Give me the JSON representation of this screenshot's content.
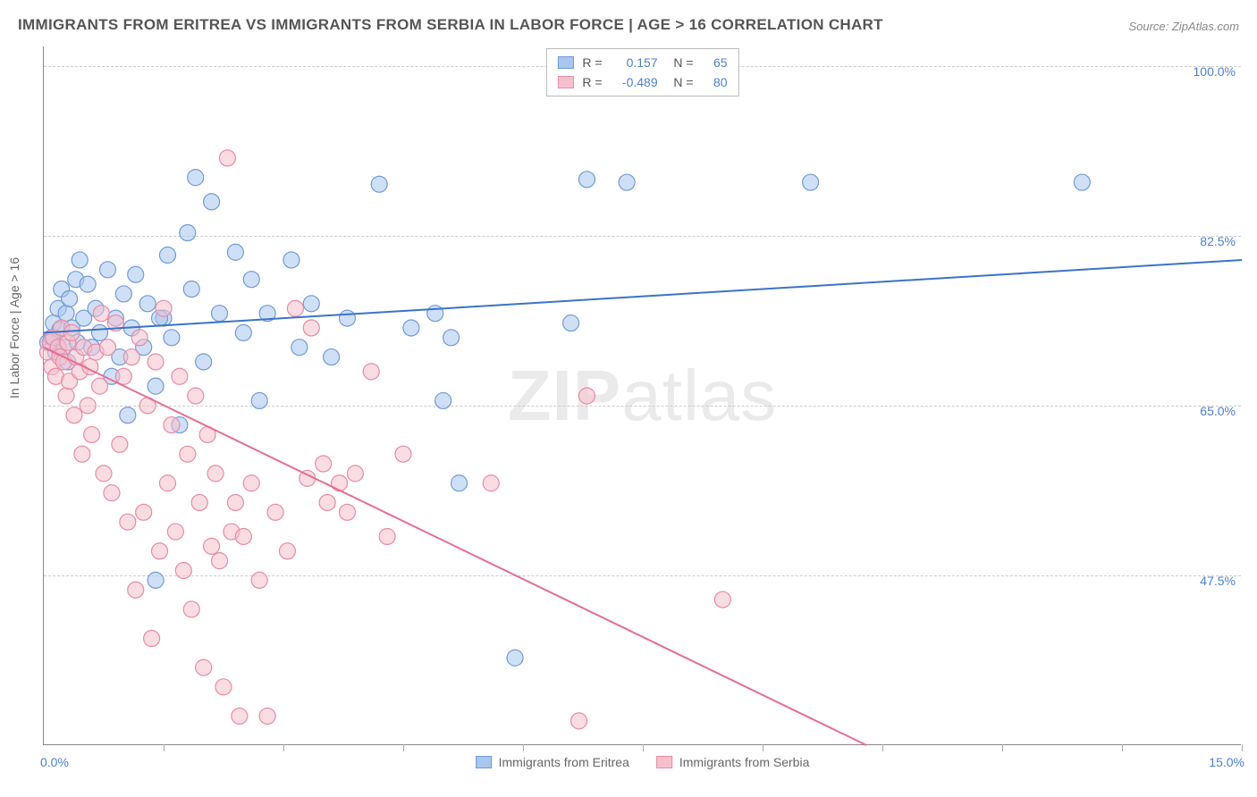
{
  "title": "IMMIGRANTS FROM ERITREA VS IMMIGRANTS FROM SERBIA IN LABOR FORCE | AGE > 16 CORRELATION CHART",
  "source": "Source: ZipAtlas.com",
  "watermark_main": "ZIP",
  "watermark_sub": "atlas",
  "ylabel": "In Labor Force | Age > 16",
  "chart": {
    "type": "scatter",
    "xlim": [
      0,
      15
    ],
    "ylim": [
      30,
      102
    ],
    "xtick_labels": [
      "0.0%",
      "15.0%"
    ],
    "ytick_positions": [
      47.5,
      65.0,
      82.5,
      100.0
    ],
    "ytick_labels": [
      "47.5%",
      "65.0%",
      "82.5%",
      "100.0%"
    ],
    "xtick_mark_positions": [
      1.5,
      3.0,
      4.5,
      6.0,
      7.5,
      9.0,
      10.5,
      12.0,
      13.5,
      15.0
    ],
    "background": "#ffffff",
    "grid_color": "#cccccc",
    "axis_color": "#888888",
    "marker_radius": 9,
    "marker_stroke_width": 1.2,
    "line_width": 2,
    "tick_label_color": "#4a7fd8",
    "text_color": "#666666"
  },
  "series": [
    {
      "name": "Immigrants from Eritrea",
      "color_fill": "#a8c6ee",
      "color_stroke": "#6f9bd8",
      "line_color": "#3b73c9",
      "r_label": "R =",
      "r_value": "0.157",
      "n_label": "N =",
      "n_value": "65",
      "trend": {
        "x1": 0,
        "y1": 72.5,
        "x2": 15,
        "y2": 80.0
      },
      "points": [
        [
          0.05,
          71.5
        ],
        [
          0.1,
          72
        ],
        [
          0.12,
          73.5
        ],
        [
          0.15,
          70.5
        ],
        [
          0.18,
          75
        ],
        [
          0.2,
          72.8
        ],
        [
          0.22,
          77
        ],
        [
          0.25,
          71
        ],
        [
          0.28,
          74.5
        ],
        [
          0.3,
          69.5
        ],
        [
          0.32,
          76
        ],
        [
          0.35,
          73
        ],
        [
          0.4,
          78
        ],
        [
          0.42,
          71.5
        ],
        [
          0.45,
          80
        ],
        [
          0.5,
          74
        ],
        [
          0.55,
          77.5
        ],
        [
          0.6,
          71
        ],
        [
          0.65,
          75
        ],
        [
          0.7,
          72.5
        ],
        [
          0.8,
          79
        ],
        [
          0.85,
          68
        ],
        [
          0.9,
          74
        ],
        [
          0.95,
          70
        ],
        [
          1.0,
          76.5
        ],
        [
          1.05,
          64
        ],
        [
          1.1,
          73
        ],
        [
          1.15,
          78.5
        ],
        [
          1.25,
          71
        ],
        [
          1.3,
          75.5
        ],
        [
          1.4,
          67
        ],
        [
          1.5,
          74
        ],
        [
          1.55,
          80.5
        ],
        [
          1.6,
          72
        ],
        [
          1.7,
          63
        ],
        [
          1.8,
          82.8
        ],
        [
          1.85,
          77
        ],
        [
          1.9,
          88.5
        ],
        [
          2.0,
          69.5
        ],
        [
          2.1,
          86
        ],
        [
          2.2,
          74.5
        ],
        [
          2.4,
          80.8
        ],
        [
          2.5,
          72.5
        ],
        [
          2.6,
          78
        ],
        [
          2.7,
          65.5
        ],
        [
          2.8,
          74.5
        ],
        [
          3.1,
          80
        ],
        [
          3.2,
          71
        ],
        [
          3.35,
          75.5
        ],
        [
          3.6,
          70
        ],
        [
          3.8,
          74
        ],
        [
          4.2,
          87.8
        ],
        [
          4.6,
          73
        ],
        [
          4.9,
          74.5
        ],
        [
          5.0,
          65.5
        ],
        [
          5.1,
          72
        ],
        [
          5.2,
          57
        ],
        [
          5.9,
          39
        ],
        [
          6.6,
          73.5
        ],
        [
          6.8,
          88.3
        ],
        [
          7.3,
          88
        ],
        [
          9.6,
          88
        ],
        [
          1.4,
          47
        ],
        [
          1.45,
          74
        ],
        [
          13.0,
          88
        ]
      ]
    },
    {
      "name": "Immigrants from Serbia",
      "color_fill": "#f5c0cc",
      "color_stroke": "#e88ba4",
      "line_color": "#e76d91",
      "r_label": "R =",
      "r_value": "-0.489",
      "n_label": "N =",
      "n_value": "80",
      "trend": {
        "x1": 0,
        "y1": 71,
        "x2": 10.3,
        "y2": 30
      },
      "points": [
        [
          0.05,
          70.5
        ],
        [
          0.08,
          71.5
        ],
        [
          0.1,
          69
        ],
        [
          0.12,
          72
        ],
        [
          0.15,
          68
        ],
        [
          0.18,
          71
        ],
        [
          0.2,
          70
        ],
        [
          0.22,
          73
        ],
        [
          0.25,
          69.5
        ],
        [
          0.28,
          66
        ],
        [
          0.3,
          71.5
        ],
        [
          0.32,
          67.5
        ],
        [
          0.35,
          72.5
        ],
        [
          0.38,
          64
        ],
        [
          0.4,
          70
        ],
        [
          0.45,
          68.5
        ],
        [
          0.48,
          60
        ],
        [
          0.5,
          71
        ],
        [
          0.55,
          65
        ],
        [
          0.58,
          69
        ],
        [
          0.6,
          62
        ],
        [
          0.65,
          70.5
        ],
        [
          0.7,
          67
        ],
        [
          0.72,
          74.5
        ],
        [
          0.75,
          58
        ],
        [
          0.8,
          71
        ],
        [
          0.85,
          56
        ],
        [
          0.9,
          73.5
        ],
        [
          0.95,
          61
        ],
        [
          1.0,
          68
        ],
        [
          1.05,
          53
        ],
        [
          1.1,
          70
        ],
        [
          1.15,
          46
        ],
        [
          1.2,
          72
        ],
        [
          1.25,
          54
        ],
        [
          1.3,
          65
        ],
        [
          1.35,
          41
        ],
        [
          1.4,
          69.5
        ],
        [
          1.45,
          50
        ],
        [
          1.5,
          75
        ],
        [
          1.55,
          57
        ],
        [
          1.6,
          63
        ],
        [
          1.65,
          52
        ],
        [
          1.7,
          68
        ],
        [
          1.75,
          48
        ],
        [
          1.8,
          60
        ],
        [
          1.85,
          44
        ],
        [
          1.9,
          66
        ],
        [
          1.95,
          55
        ],
        [
          2.0,
          38
        ],
        [
          2.05,
          62
        ],
        [
          2.1,
          50.5
        ],
        [
          2.15,
          58
        ],
        [
          2.2,
          49
        ],
        [
          2.25,
          36
        ],
        [
          2.3,
          90.5
        ],
        [
          2.35,
          52
        ],
        [
          2.4,
          55
        ],
        [
          2.45,
          33
        ],
        [
          2.5,
          51.5
        ],
        [
          2.6,
          57
        ],
        [
          2.7,
          47
        ],
        [
          2.8,
          33
        ],
        [
          2.9,
          54
        ],
        [
          3.05,
          50
        ],
        [
          3.15,
          75
        ],
        [
          3.3,
          57.5
        ],
        [
          3.35,
          73
        ],
        [
          3.5,
          59
        ],
        [
          3.55,
          55
        ],
        [
          3.7,
          57
        ],
        [
          3.8,
          54
        ],
        [
          3.9,
          58
        ],
        [
          4.1,
          68.5
        ],
        [
          4.3,
          51.5
        ],
        [
          4.5,
          60
        ],
        [
          5.6,
          57
        ],
        [
          6.7,
          32.5
        ],
        [
          6.8,
          66
        ],
        [
          8.5,
          45
        ]
      ]
    }
  ]
}
